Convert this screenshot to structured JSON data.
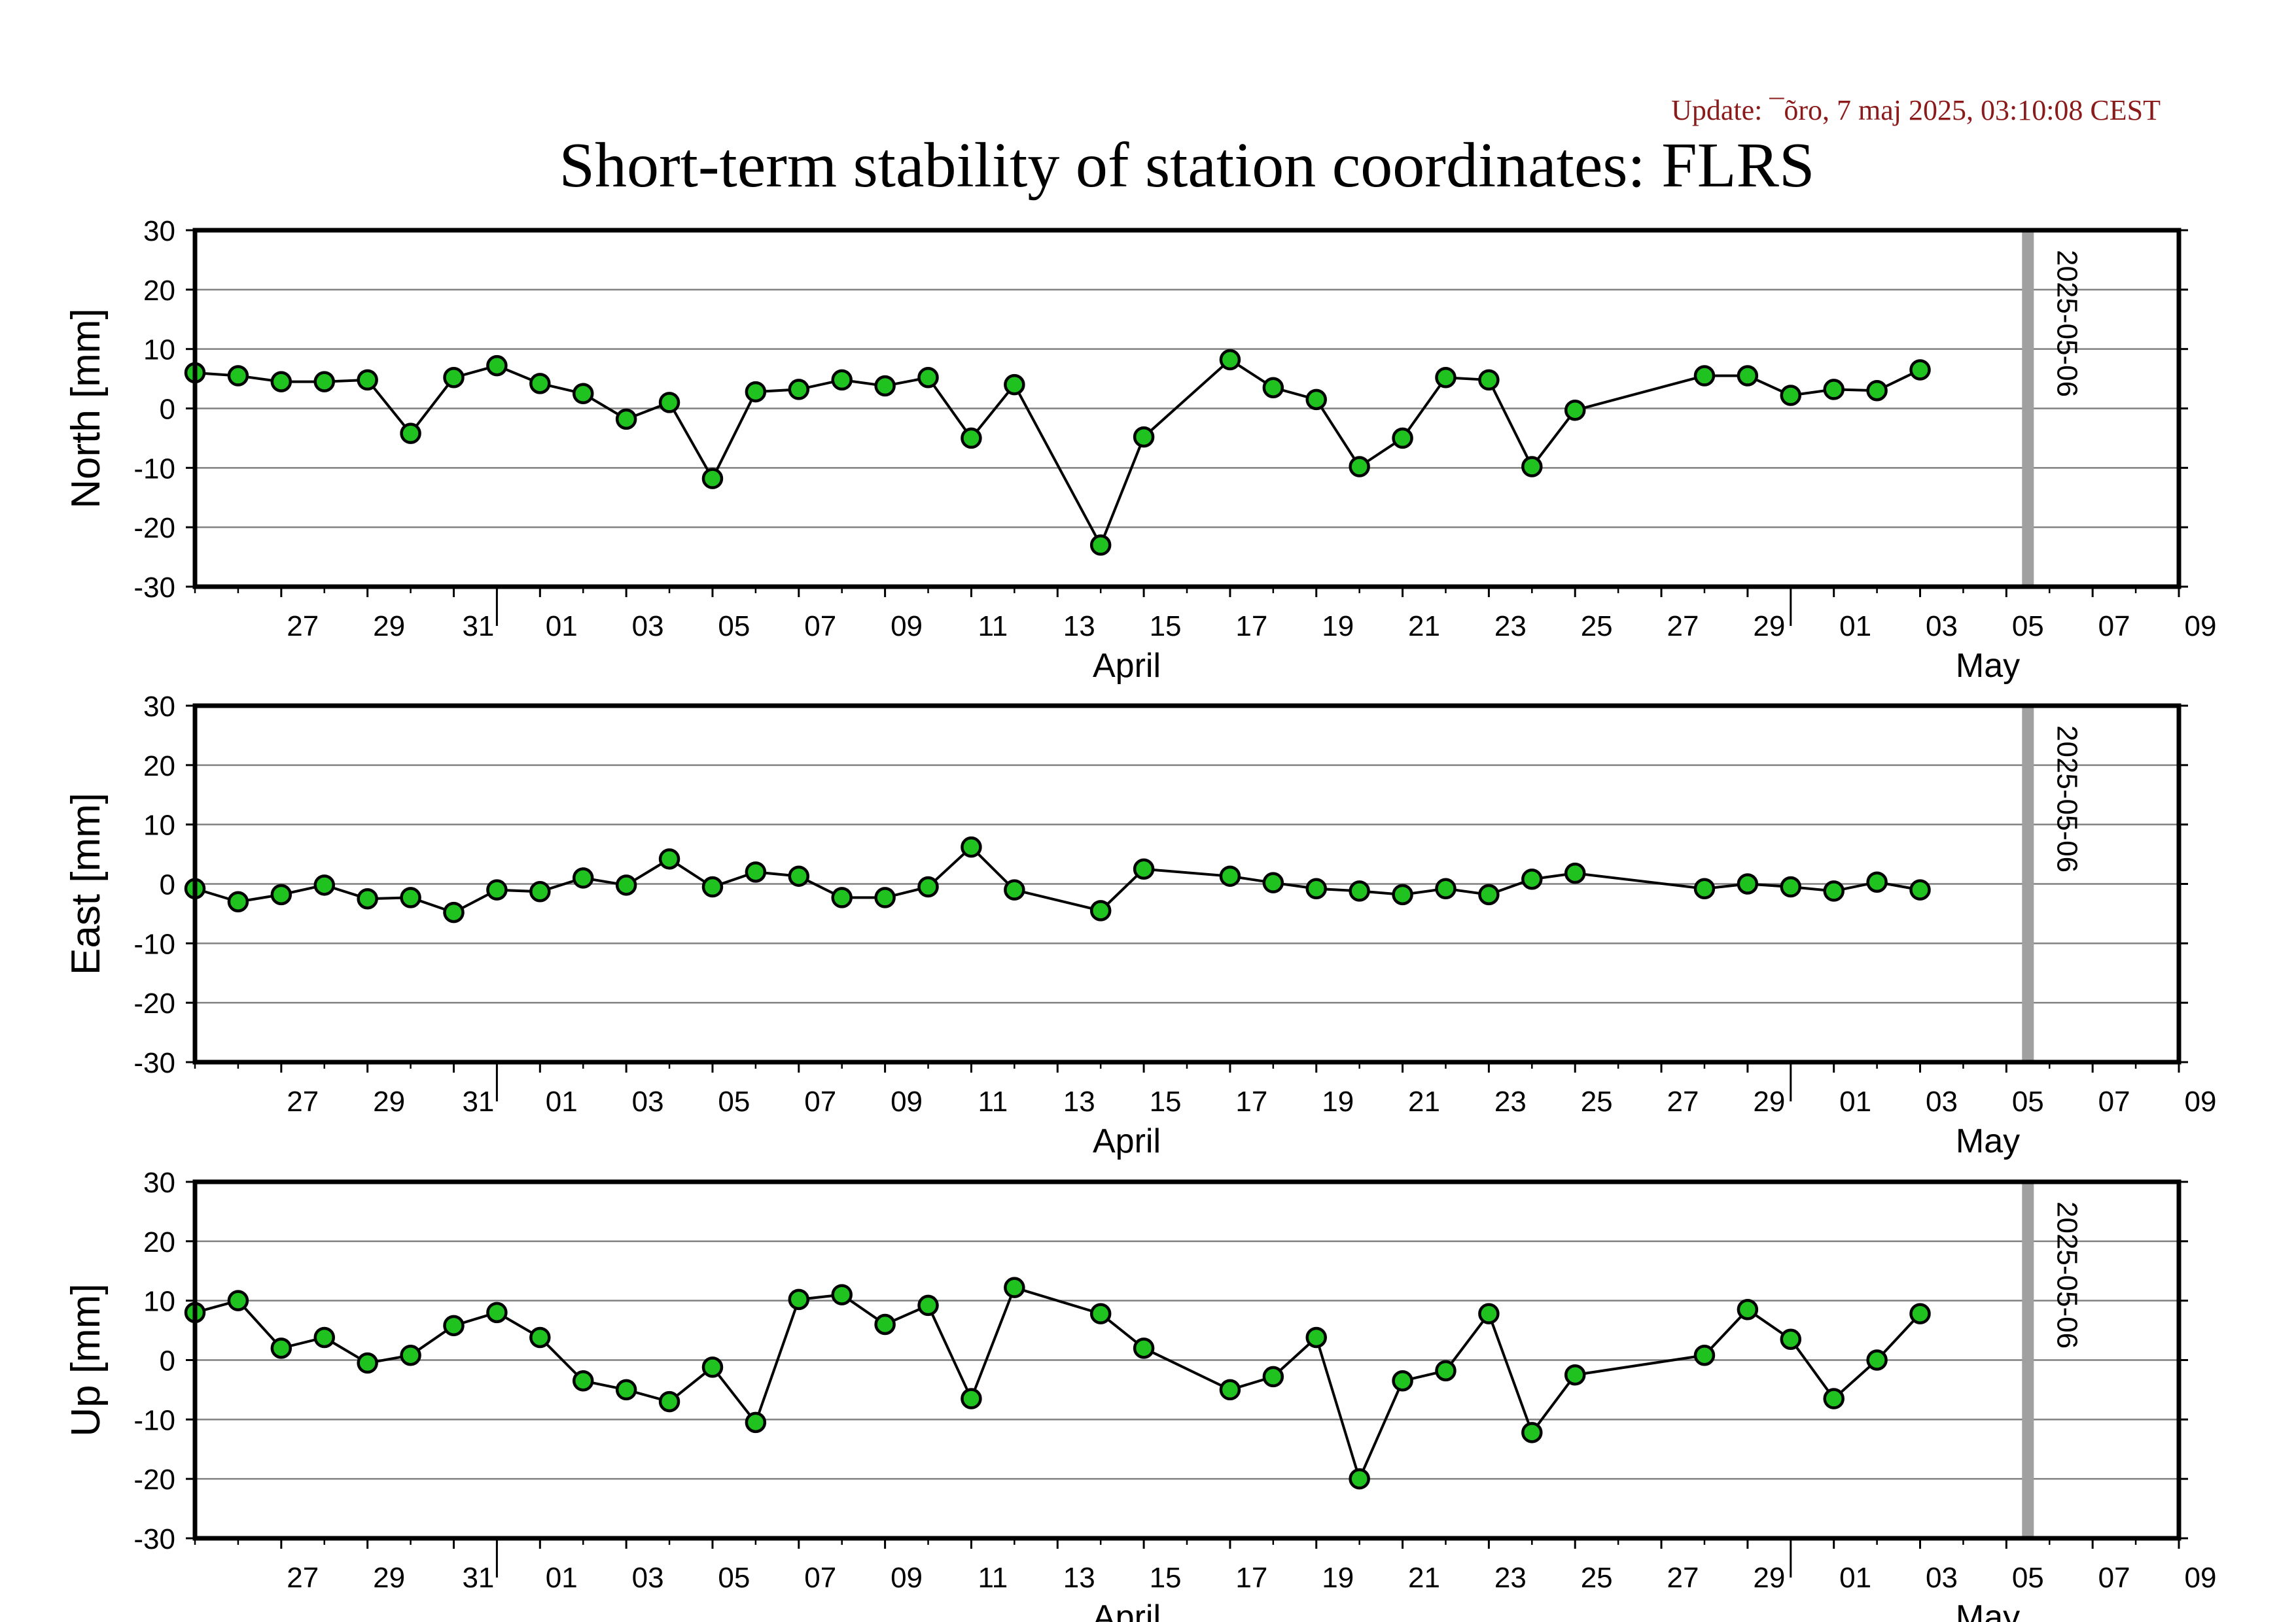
{
  "update_text": "Update: ¯õro, 7 maj 2025, 03:10:08 CEST",
  "title": "Short-term stability of station coordinates: FLRS",
  "chart_data": {
    "type": "line",
    "x_unit": "date",
    "x_range": [
      "2025-03-25",
      "2025-05-10"
    ],
    "x_tick_labels": [
      "27",
      "29",
      "31",
      "01",
      "03",
      "05",
      "07",
      "09",
      "11",
      "13",
      "15",
      "17",
      "19",
      "21",
      "23",
      "25",
      "27",
      "29",
      "01",
      "03",
      "05",
      "07",
      "09"
    ],
    "month_labels": [
      "April",
      "May"
    ],
    "marker_line": {
      "date": "2025-05-06",
      "label": "2025-05-06",
      "color": "#a0a0a0"
    },
    "marker_color": "#1fc21f",
    "line_color": "#000000",
    "grid": true,
    "ylim": [
      -30,
      30
    ],
    "y_ticks": [
      30,
      20,
      10,
      0,
      -10,
      -20,
      -30
    ],
    "panels": [
      {
        "ylabel": "North [mm]",
        "series": [
          {
            "x": "2025-03-25",
            "y": 6
          },
          {
            "x": "2025-03-26",
            "y": 5.5
          },
          {
            "x": "2025-03-27",
            "y": 4.5
          },
          {
            "x": "2025-03-28",
            "y": 4.5
          },
          {
            "x": "2025-03-29",
            "y": 4.8
          },
          {
            "x": "2025-03-30",
            "y": -4.2
          },
          {
            "x": "2025-03-31",
            "y": 5.2
          },
          {
            "x": "2025-04-01",
            "y": 7.2
          },
          {
            "x": "2025-04-02",
            "y": 4.2
          },
          {
            "x": "2025-04-03",
            "y": 2.5
          },
          {
            "x": "2025-04-04",
            "y": -1.8
          },
          {
            "x": "2025-04-05",
            "y": 1
          },
          {
            "x": "2025-04-06",
            "y": -11.8
          },
          {
            "x": "2025-04-07",
            "y": 2.8
          },
          {
            "x": "2025-04-08",
            "y": 3.2
          },
          {
            "x": "2025-04-09",
            "y": 4.8
          },
          {
            "x": "2025-04-10",
            "y": 3.8
          },
          {
            "x": "2025-04-11",
            "y": 5.2
          },
          {
            "x": "2025-04-12",
            "y": -5
          },
          {
            "x": "2025-04-13",
            "y": 4
          },
          {
            "x": "2025-04-15",
            "y": -23
          },
          {
            "x": "2025-04-16",
            "y": -4.8
          },
          {
            "x": "2025-04-18",
            "y": 8.2
          },
          {
            "x": "2025-04-19",
            "y": 3.5
          },
          {
            "x": "2025-04-20",
            "y": 1.5
          },
          {
            "x": "2025-04-21",
            "y": -9.8
          },
          {
            "x": "2025-04-22",
            "y": -5
          },
          {
            "x": "2025-04-23",
            "y": 5.2
          },
          {
            "x": "2025-04-24",
            "y": 4.8
          },
          {
            "x": "2025-04-25",
            "y": -9.8
          },
          {
            "x": "2025-04-26",
            "y": -0.3
          },
          {
            "x": "2025-04-29",
            "y": 5.5
          },
          {
            "x": "2025-04-30",
            "y": 5.5
          },
          {
            "x": "2025-05-01",
            "y": 2.2
          },
          {
            "x": "2025-05-02",
            "y": 3.2
          },
          {
            "x": "2025-05-03",
            "y": 3
          },
          {
            "x": "2025-05-04",
            "y": 6.5
          }
        ]
      },
      {
        "ylabel": "East [mm]",
        "series": [
          {
            "x": "2025-03-25",
            "y": -0.8
          },
          {
            "x": "2025-03-26",
            "y": -3
          },
          {
            "x": "2025-03-27",
            "y": -1.8
          },
          {
            "x": "2025-03-28",
            "y": -0.2
          },
          {
            "x": "2025-03-29",
            "y": -2.5
          },
          {
            "x": "2025-03-30",
            "y": -2.3
          },
          {
            "x": "2025-03-31",
            "y": -4.8
          },
          {
            "x": "2025-04-01",
            "y": -1
          },
          {
            "x": "2025-04-02",
            "y": -1.3
          },
          {
            "x": "2025-04-03",
            "y": 1
          },
          {
            "x": "2025-04-04",
            "y": -0.2
          },
          {
            "x": "2025-04-05",
            "y": 4.2
          },
          {
            "x": "2025-04-06",
            "y": -0.5
          },
          {
            "x": "2025-04-07",
            "y": 2
          },
          {
            "x": "2025-04-08",
            "y": 1.3
          },
          {
            "x": "2025-04-09",
            "y": -2.3
          },
          {
            "x": "2025-04-10",
            "y": -2.3
          },
          {
            "x": "2025-04-11",
            "y": -0.5
          },
          {
            "x": "2025-04-12",
            "y": 6.2
          },
          {
            "x": "2025-04-13",
            "y": -1
          },
          {
            "x": "2025-04-15",
            "y": -4.5
          },
          {
            "x": "2025-04-16",
            "y": 2.5
          },
          {
            "x": "2025-04-18",
            "y": 1.3
          },
          {
            "x": "2025-04-19",
            "y": 0.2
          },
          {
            "x": "2025-04-20",
            "y": -0.8
          },
          {
            "x": "2025-04-21",
            "y": -1.2
          },
          {
            "x": "2025-04-22",
            "y": -1.8
          },
          {
            "x": "2025-04-23",
            "y": -0.8
          },
          {
            "x": "2025-04-24",
            "y": -1.8
          },
          {
            "x": "2025-04-25",
            "y": 0.8
          },
          {
            "x": "2025-04-26",
            "y": 1.8
          },
          {
            "x": "2025-04-29",
            "y": -0.8
          },
          {
            "x": "2025-04-30",
            "y": 0
          },
          {
            "x": "2025-05-01",
            "y": -0.5
          },
          {
            "x": "2025-05-02",
            "y": -1.2
          },
          {
            "x": "2025-05-03",
            "y": 0.3
          },
          {
            "x": "2025-05-04",
            "y": -1
          }
        ]
      },
      {
        "ylabel": "Up [mm]",
        "series": [
          {
            "x": "2025-03-25",
            "y": 8
          },
          {
            "x": "2025-03-26",
            "y": 10
          },
          {
            "x": "2025-03-27",
            "y": 2
          },
          {
            "x": "2025-03-28",
            "y": 3.8
          },
          {
            "x": "2025-03-29",
            "y": -0.5
          },
          {
            "x": "2025-03-30",
            "y": 0.8
          },
          {
            "x": "2025-03-31",
            "y": 5.8
          },
          {
            "x": "2025-04-01",
            "y": 8
          },
          {
            "x": "2025-04-02",
            "y": 3.8
          },
          {
            "x": "2025-04-03",
            "y": -3.5
          },
          {
            "x": "2025-04-04",
            "y": -5
          },
          {
            "x": "2025-04-05",
            "y": -7
          },
          {
            "x": "2025-04-06",
            "y": -1.2
          },
          {
            "x": "2025-04-07",
            "y": -10.5
          },
          {
            "x": "2025-04-08",
            "y": 10.2
          },
          {
            "x": "2025-04-09",
            "y": 11
          },
          {
            "x": "2025-04-10",
            "y": 6
          },
          {
            "x": "2025-04-11",
            "y": 9.2
          },
          {
            "x": "2025-04-12",
            "y": -6.5
          },
          {
            "x": "2025-04-13",
            "y": 12.2
          },
          {
            "x": "2025-04-15",
            "y": 7.8
          },
          {
            "x": "2025-04-16",
            "y": 2
          },
          {
            "x": "2025-04-18",
            "y": -5
          },
          {
            "x": "2025-04-19",
            "y": -2.8
          },
          {
            "x": "2025-04-20",
            "y": 3.8
          },
          {
            "x": "2025-04-21",
            "y": -20
          },
          {
            "x": "2025-04-22",
            "y": -3.5
          },
          {
            "x": "2025-04-23",
            "y": -1.8
          },
          {
            "x": "2025-04-24",
            "y": 7.8
          },
          {
            "x": "2025-04-25",
            "y": -12.2
          },
          {
            "x": "2025-04-26",
            "y": -2.5
          },
          {
            "x": "2025-04-29",
            "y": 0.8
          },
          {
            "x": "2025-04-30",
            "y": 8.5
          },
          {
            "x": "2025-05-01",
            "y": 3.5
          },
          {
            "x": "2025-05-02",
            "y": -6.5
          },
          {
            "x": "2025-05-03",
            "y": 0
          },
          {
            "x": "2025-05-04",
            "y": 7.8
          }
        ]
      }
    ]
  }
}
